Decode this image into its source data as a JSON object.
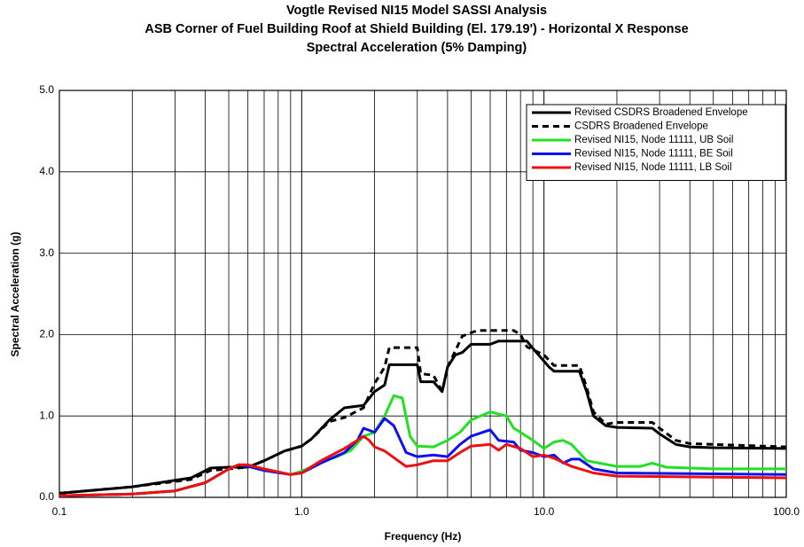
{
  "chart_data": {
    "type": "line",
    "title": [
      "Vogtle Revised NI15 Model SASSI Analysis",
      "ASB Corner of Fuel Building Roof at Shield Building (El. 179.19') - Horizontal X Response",
      "Spectral Acceleration (5% Damping)"
    ],
    "x_label": "Frequency (Hz)",
    "y_label": "Spectral Acceleration (g)",
    "xscale": "log",
    "grid": true,
    "minor_grid": true,
    "legend": "upper right",
    "xlim": [
      0.1,
      100
    ],
    "ylim": [
      0,
      5
    ],
    "xticks": [
      0.1,
      {
        "value": 1,
        "label": "1.0"
      },
      {
        "value": 10,
        "label": "10.0"
      },
      {
        "value": 100,
        "label": "100.0"
      }
    ],
    "yticks": [
      {
        "value": 0,
        "label": "0.0"
      },
      {
        "value": 1,
        "label": "1.0"
      },
      {
        "value": 2,
        "label": "2.0"
      },
      {
        "value": 3,
        "label": "3.0"
      },
      {
        "value": 4,
        "label": "4.0"
      },
      {
        "value": 5,
        "label": "5.0"
      }
    ],
    "series": [
      {
        "name": "Revised CSDRS Broadened Envelope",
        "color": "#000000",
        "dash": false,
        "width": 3,
        "x": [
          0.1,
          0.2,
          0.35,
          0.42,
          0.5,
          0.6,
          0.7,
          0.85,
          1.0,
          1.1,
          1.3,
          1.5,
          1.8,
          2.0,
          2.2,
          2.3,
          3.0,
          3.1,
          3.5,
          3.8,
          4.0,
          4.3,
          4.6,
          5.0,
          6.0,
          6.5,
          8.5,
          9.0,
          10.5,
          11,
          14,
          15,
          16,
          18,
          20,
          28,
          30,
          35,
          40,
          50,
          100
        ],
        "values": [
          0.05,
          0.13,
          0.24,
          0.36,
          0.37,
          0.37,
          0.45,
          0.57,
          0.63,
          0.72,
          0.95,
          1.1,
          1.13,
          1.3,
          1.38,
          1.63,
          1.63,
          1.42,
          1.42,
          1.3,
          1.6,
          1.75,
          1.78,
          1.88,
          1.88,
          1.92,
          1.92,
          1.83,
          1.6,
          1.55,
          1.55,
          1.3,
          1.0,
          0.88,
          0.86,
          0.85,
          0.78,
          0.65,
          0.62,
          0.61,
          0.6
        ]
      },
      {
        "name": "CSDRS Broadened Envelope",
        "color": "#000000",
        "dash": true,
        "width": 3,
        "x": [
          0.1,
          0.2,
          0.35,
          0.42,
          0.5,
          0.6,
          0.7,
          0.85,
          1.0,
          1.1,
          1.3,
          1.5,
          1.8,
          2.0,
          2.2,
          2.3,
          3.0,
          3.1,
          3.5,
          3.8,
          4.0,
          4.6,
          5.3,
          7.5,
          8.0,
          8.5,
          10,
          11,
          14,
          15,
          16,
          18,
          20,
          28,
          30,
          35,
          40,
          100
        ],
        "values": [
          0.05,
          0.13,
          0.22,
          0.33,
          0.35,
          0.37,
          0.45,
          0.57,
          0.63,
          0.72,
          0.93,
          0.98,
          1.1,
          1.4,
          1.6,
          1.84,
          1.84,
          1.52,
          1.5,
          1.3,
          1.6,
          1.98,
          2.05,
          2.05,
          2.0,
          1.85,
          1.75,
          1.62,
          1.62,
          1.35,
          1.05,
          0.9,
          0.92,
          0.92,
          0.85,
          0.7,
          0.66,
          0.62
        ]
      },
      {
        "name": "Revised NI15, Node 11111, UB Soil",
        "color": "#22e022",
        "dash": false,
        "width": 3,
        "x": [
          0.1,
          0.2,
          0.3,
          0.4,
          0.5,
          0.55,
          0.6,
          0.7,
          0.9,
          1.0,
          1.2,
          1.4,
          1.6,
          1.8,
          2.0,
          2.2,
          2.4,
          2.6,
          2.8,
          3.0,
          3.5,
          4.0,
          4.5,
          5.0,
          6.0,
          7.0,
          7.5,
          8.0,
          9.0,
          10,
          11,
          12,
          13,
          15,
          20,
          25,
          28,
          32,
          50,
          100
        ],
        "values": [
          0.02,
          0.04,
          0.08,
          0.18,
          0.35,
          0.4,
          0.38,
          0.33,
          0.28,
          0.32,
          0.43,
          0.5,
          0.58,
          0.75,
          0.8,
          1.0,
          1.25,
          1.22,
          0.75,
          0.63,
          0.62,
          0.7,
          0.8,
          0.95,
          1.05,
          1.0,
          0.85,
          0.8,
          0.7,
          0.6,
          0.68,
          0.7,
          0.65,
          0.45,
          0.38,
          0.38,
          0.42,
          0.37,
          0.35,
          0.35
        ]
      },
      {
        "name": "Revised NI15, Node 11111, BE Soil",
        "color": "#1010ee",
        "dash": false,
        "width": 3,
        "x": [
          0.1,
          0.2,
          0.3,
          0.4,
          0.5,
          0.55,
          0.6,
          0.7,
          0.9,
          1.0,
          1.2,
          1.5,
          1.7,
          1.8,
          2.0,
          2.2,
          2.4,
          2.7,
          3.0,
          3.5,
          4.0,
          4.5,
          5.0,
          6.0,
          6.5,
          7.5,
          8.0,
          9.0,
          10,
          11,
          12,
          13,
          14,
          16,
          20,
          100
        ],
        "values": [
          0.02,
          0.04,
          0.08,
          0.18,
          0.35,
          0.4,
          0.38,
          0.33,
          0.28,
          0.3,
          0.42,
          0.55,
          0.7,
          0.85,
          0.8,
          0.97,
          0.88,
          0.55,
          0.5,
          0.52,
          0.5,
          0.65,
          0.75,
          0.83,
          0.7,
          0.68,
          0.58,
          0.55,
          0.5,
          0.52,
          0.42,
          0.47,
          0.47,
          0.35,
          0.3,
          0.28
        ]
      },
      {
        "name": "Revised NI15, Node 11111, LB Soil",
        "color": "#ee1010",
        "dash": false,
        "width": 3,
        "x": [
          0.1,
          0.2,
          0.3,
          0.4,
          0.5,
          0.55,
          0.6,
          0.7,
          0.9,
          1.0,
          1.2,
          1.5,
          1.8,
          1.9,
          2.0,
          2.2,
          2.5,
          2.7,
          3.0,
          3.5,
          4.0,
          4.5,
          5.0,
          6.0,
          6.5,
          7.0,
          8.0,
          9.0,
          10,
          11,
          13,
          16,
          20,
          100
        ],
        "values": [
          0.02,
          0.04,
          0.08,
          0.18,
          0.35,
          0.4,
          0.4,
          0.35,
          0.28,
          0.3,
          0.45,
          0.6,
          0.75,
          0.7,
          0.62,
          0.57,
          0.45,
          0.38,
          0.4,
          0.45,
          0.45,
          0.55,
          0.63,
          0.65,
          0.58,
          0.65,
          0.6,
          0.5,
          0.52,
          0.48,
          0.38,
          0.3,
          0.26,
          0.24
        ]
      }
    ]
  }
}
